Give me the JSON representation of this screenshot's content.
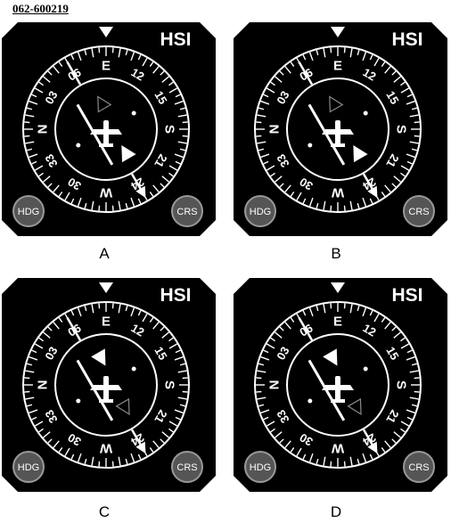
{
  "reference_id": "062-600219",
  "instrument": {
    "title": "HSI",
    "hdg_button": "HDG",
    "crs_button": "CRS",
    "scale_labels": [
      "N",
      "03",
      "06",
      "E",
      "12",
      "15",
      "S",
      "21",
      "24",
      "W",
      "30",
      "33"
    ]
  },
  "options": [
    {
      "label": "A",
      "to_from": "from",
      "flag_color": "#202020"
    },
    {
      "label": "B",
      "to_from": "from",
      "flag_color": "#202020"
    },
    {
      "label": "C",
      "to_from": "to",
      "flag_color": "#ffffff"
    },
    {
      "label": "D",
      "to_from": "to",
      "flag_color": "#ffffff"
    }
  ]
}
